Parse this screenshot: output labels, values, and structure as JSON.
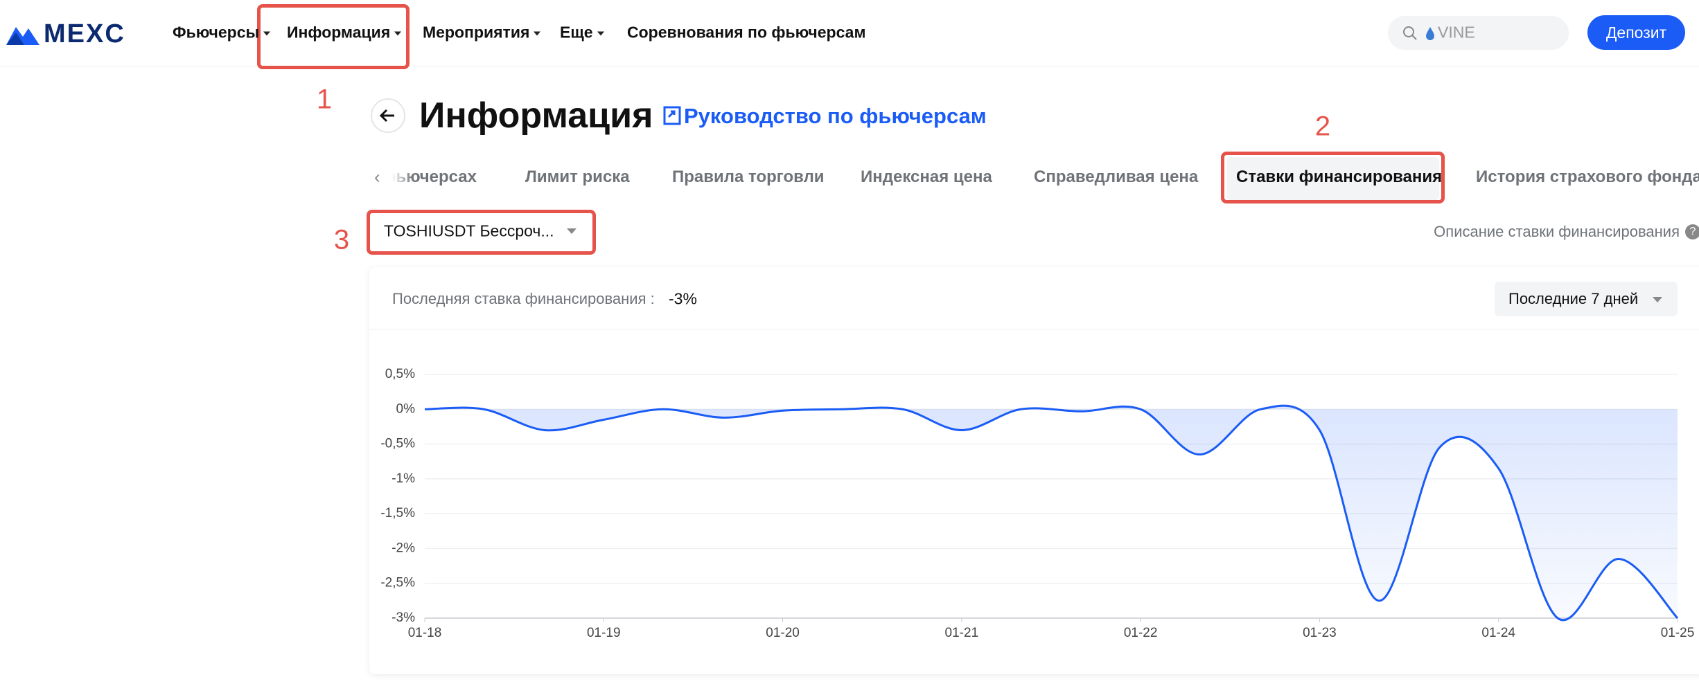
{
  "header": {
    "logo": "MEXC",
    "nav": [
      "Фьючерсы",
      "Информация",
      "Мероприятия",
      "Еще",
      "Соревнования по фьючерсам"
    ],
    "search_placeholder": "VINE",
    "deposit": "Депозит"
  },
  "annotations": [
    "1",
    "2",
    "3"
  ],
  "page": {
    "title": "Информация",
    "guide_link": "Руководство по фьючерсам",
    "tabs": [
      "фьючерсах",
      "Лимит риска",
      "Правила торговли",
      "Индексная цена",
      "Справедливая цена",
      "Ставки финансирования",
      "История страхового фонда"
    ],
    "active_tab": 5,
    "contract": "TOSHIUSDT Бессроч...",
    "description_link": "Описание ставки финансирования"
  },
  "chart_data": {
    "type": "line",
    "latest_label": "Последняя ставка финансирования :",
    "latest_value": "-3%",
    "period": "Последние 7 дней",
    "x": [
      0,
      0.33,
      0.67,
      1,
      1.33,
      1.67,
      2,
      2.33,
      2.67,
      3,
      3.33,
      3.67,
      4,
      4.33,
      4.67,
      5,
      5.33,
      5.67,
      6,
      6.33,
      6.67,
      7
    ],
    "values": [
      0,
      0,
      -0.3,
      -0.15,
      0,
      -0.12,
      -0.02,
      0,
      0,
      -0.3,
      0,
      -0.03,
      0,
      -0.65,
      0,
      -0.3,
      -2.75,
      -0.55,
      -0.85,
      -3,
      -2.15,
      -3
    ],
    "color": "#1a5cf5",
    "xlim": [
      0,
      7
    ],
    "xticks": [
      {
        "value": 0,
        "label": "01-18"
      },
      {
        "value": 1,
        "label": "01-19"
      },
      {
        "value": 2,
        "label": "01-20"
      },
      {
        "value": 3,
        "label": "01-21"
      },
      {
        "value": 4,
        "label": "01-22"
      },
      {
        "value": 5,
        "label": "01-23"
      },
      {
        "value": 6,
        "label": "01-24"
      },
      {
        "value": 7,
        "label": "01-25"
      }
    ],
    "ylim": [
      -3,
      0.5
    ],
    "yticks": [
      {
        "value": 0.5,
        "label": "0,5%"
      },
      {
        "value": 0,
        "label": "0%"
      },
      {
        "value": -0.5,
        "label": "-0,5%"
      },
      {
        "value": -1,
        "label": "-1%"
      },
      {
        "value": -1.5,
        "label": "-1,5%"
      },
      {
        "value": -2,
        "label": "-2%"
      },
      {
        "value": -2.5,
        "label": "-2,5%"
      },
      {
        "value": -3,
        "label": "-3%"
      }
    ],
    "grid": true
  }
}
